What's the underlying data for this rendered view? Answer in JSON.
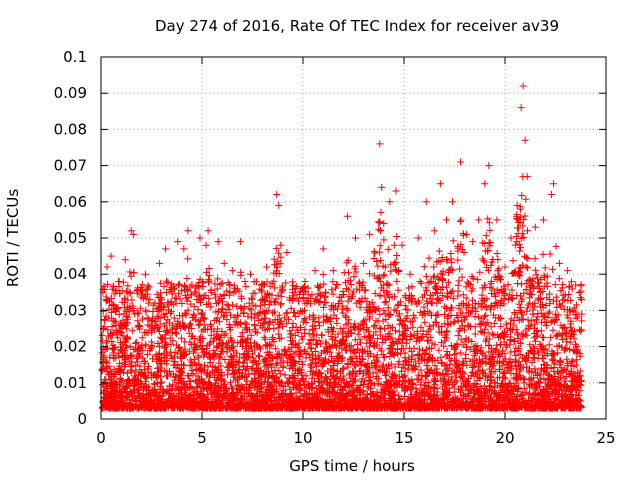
{
  "chart_data": {
    "type": "scatter",
    "title": "Day 274 of 2016, Rate Of TEC Index for receiver av39",
    "xlabel": "GPS time / hours",
    "ylabel": "ROTI / TECUs",
    "xlim": [
      0,
      25
    ],
    "ylim": [
      0,
      0.1
    ],
    "grid": true,
    "marker": "+",
    "color": "#ff0000",
    "x_ticks": [
      0,
      5,
      10,
      15,
      20,
      25
    ],
    "x_tick_labels": [
      "0",
      "5",
      "10",
      "15",
      "20",
      "25"
    ],
    "y_ticks": [
      0,
      0.01,
      0.02,
      0.03,
      0.04,
      0.05,
      0.06,
      0.07,
      0.08,
      0.09,
      0.1
    ],
    "y_tick_labels": [
      "0",
      "0.01",
      "0.02",
      "0.03",
      "0.04",
      "0.05",
      "0.06",
      "0.07",
      "0.08",
      "0.09",
      "0.1"
    ],
    "series": [
      {
        "name": "ROTI",
        "points": [
          [
            0.1,
            0.035
          ],
          [
            0.3,
            0.042
          ],
          [
            0.5,
            0.045
          ],
          [
            0.9,
            0.038
          ],
          [
            1.2,
            0.044
          ],
          [
            1.5,
            0.052
          ],
          [
            1.6,
            0.051
          ],
          [
            2.2,
            0.04
          ],
          [
            2.9,
            0.043
          ],
          [
            3.2,
            0.047
          ],
          [
            3.8,
            0.049
          ],
          [
            4.1,
            0.047
          ],
          [
            4.3,
            0.052
          ],
          [
            4.9,
            0.05
          ],
          [
            5.2,
            0.048
          ],
          [
            5.3,
            0.052
          ],
          [
            5.8,
            0.049
          ],
          [
            6.1,
            0.043
          ],
          [
            6.5,
            0.041
          ],
          [
            6.9,
            0.049
          ],
          [
            7.4,
            0.04
          ],
          [
            8.2,
            0.042
          ],
          [
            8.7,
            0.062
          ],
          [
            8.8,
            0.059
          ],
          [
            8.9,
            0.048
          ],
          [
            9.2,
            0.046
          ],
          [
            9.6,
            0.035
          ],
          [
            10.1,
            0.038
          ],
          [
            10.6,
            0.041
          ],
          [
            11.0,
            0.047
          ],
          [
            11.5,
            0.041
          ],
          [
            12.2,
            0.056
          ],
          [
            12.6,
            0.05
          ],
          [
            13.0,
            0.043
          ],
          [
            13.3,
            0.051
          ],
          [
            13.8,
            0.076
          ],
          [
            13.9,
            0.064
          ],
          [
            14.0,
            0.054
          ],
          [
            14.3,
            0.06
          ],
          [
            14.6,
            0.063
          ],
          [
            14.9,
            0.048
          ],
          [
            15.3,
            0.04
          ],
          [
            15.7,
            0.05
          ],
          [
            16.1,
            0.06
          ],
          [
            16.5,
            0.052
          ],
          [
            16.8,
            0.065
          ],
          [
            17.1,
            0.055
          ],
          [
            17.4,
            0.06
          ],
          [
            17.8,
            0.071
          ],
          [
            18.1,
            0.051
          ],
          [
            18.4,
            0.049
          ],
          [
            18.7,
            0.055
          ],
          [
            19.0,
            0.065
          ],
          [
            19.2,
            0.07
          ],
          [
            19.6,
            0.055
          ],
          [
            20.0,
            0.042
          ],
          [
            20.3,
            0.05
          ],
          [
            20.6,
            0.059
          ],
          [
            20.8,
            0.086
          ],
          [
            20.9,
            0.092
          ],
          [
            21.0,
            0.077
          ],
          [
            21.1,
            0.067
          ],
          [
            21.5,
            0.053
          ],
          [
            21.9,
            0.055
          ],
          [
            22.3,
            0.062
          ],
          [
            22.4,
            0.065
          ],
          [
            22.7,
            0.043
          ],
          [
            23.1,
            0.041
          ],
          [
            23.5,
            0.037
          ],
          [
            23.8,
            0.029
          ]
        ]
      }
    ]
  }
}
